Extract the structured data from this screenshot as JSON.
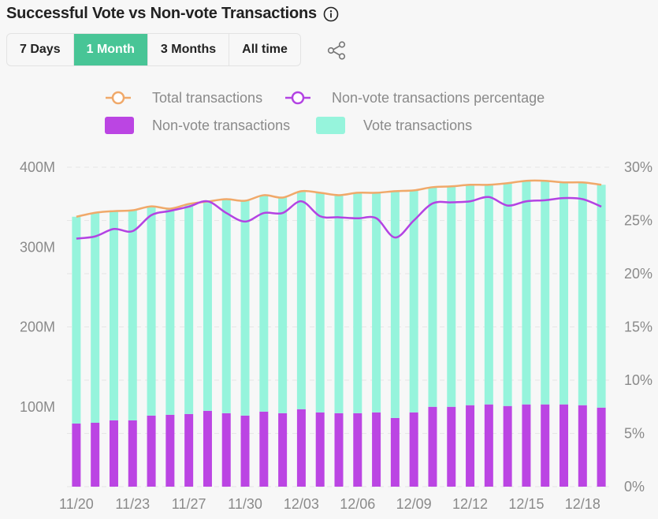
{
  "header": {
    "title": "Successful Vote vs Non-vote Transactions",
    "info_icon": "info-icon",
    "share_icon": "share-icon"
  },
  "range_buttons": [
    {
      "label": "7 Days",
      "active": false
    },
    {
      "label": "1 Month",
      "active": true
    },
    {
      "label": "3 Months",
      "active": false
    },
    {
      "label": "All time",
      "active": false
    }
  ],
  "colors": {
    "accent": "#48c596",
    "total_line": "#f0a96a",
    "percentage_line": "#b343e3",
    "non_vote_bar": "#bb45e3",
    "vote_bar": "#96f4dc"
  },
  "chart_data": {
    "type": "bar",
    "stacked": true,
    "legend": [
      {
        "name": "Total transactions",
        "kind": "line",
        "color": "#f0a96a"
      },
      {
        "name": "Non-vote transactions percentage",
        "kind": "line",
        "color": "#b343e3"
      },
      {
        "name": "Non-vote transactions",
        "kind": "bar",
        "color": "#bb45e3"
      },
      {
        "name": "Vote transactions",
        "kind": "bar",
        "color": "#96f4dc"
      }
    ],
    "legend_position": "top",
    "grid": true,
    "x_tick_labels": [
      "11/20",
      "11/23",
      "11/27",
      "11/30",
      "12/03",
      "12/06",
      "12/09",
      "12/12",
      "12/15",
      "12/18"
    ],
    "y_left": {
      "ticks": [
        "400M",
        "300M",
        "200M",
        "100M"
      ],
      "range": [
        0,
        400000000
      ]
    },
    "y_right": {
      "ticks": [
        "30%",
        "25%",
        "20%",
        "15%",
        "10%",
        "5%",
        "0%"
      ],
      "range": [
        0,
        30
      ]
    },
    "series": [
      {
        "name": "Non-vote transactions",
        "axis": "left",
        "values": [
          79,
          80,
          83,
          83,
          89,
          90,
          91,
          95,
          92,
          89,
          94,
          92,
          97,
          93,
          92,
          92,
          93,
          86,
          93,
          100,
          100,
          102,
          103,
          101,
          103,
          103,
          103,
          102,
          99
        ]
      },
      {
        "name": "Vote transactions",
        "axis": "left",
        "values": [
          259,
          263,
          262,
          263,
          262,
          258,
          263,
          262,
          268,
          269,
          271,
          270,
          273,
          275,
          273,
          276,
          275,
          284,
          278,
          275,
          276,
          276,
          275,
          279,
          280,
          280,
          278,
          279,
          279
        ]
      },
      {
        "name": "Total transactions",
        "axis": "left",
        "values": [
          338,
          343,
          345,
          346,
          351,
          348,
          354,
          357,
          360,
          358,
          365,
          362,
          370,
          368,
          365,
          368,
          368,
          370,
          371,
          375,
          376,
          378,
          378,
          380,
          383,
          383,
          381,
          381,
          378
        ]
      },
      {
        "name": "Non-vote transactions percentage",
        "axis": "right",
        "values": [
          23.3,
          23.5,
          24.2,
          24.0,
          25.5,
          25.9,
          26.3,
          26.8,
          25.7,
          24.9,
          25.7,
          25.7,
          26.8,
          25.4,
          25.3,
          25.2,
          25.2,
          23.4,
          25.0,
          26.6,
          26.7,
          26.8,
          27.2,
          26.4,
          26.8,
          26.9,
          27.1,
          27.0,
          26.3
        ],
        "unit": "%"
      }
    ],
    "value_unit": "M"
  }
}
